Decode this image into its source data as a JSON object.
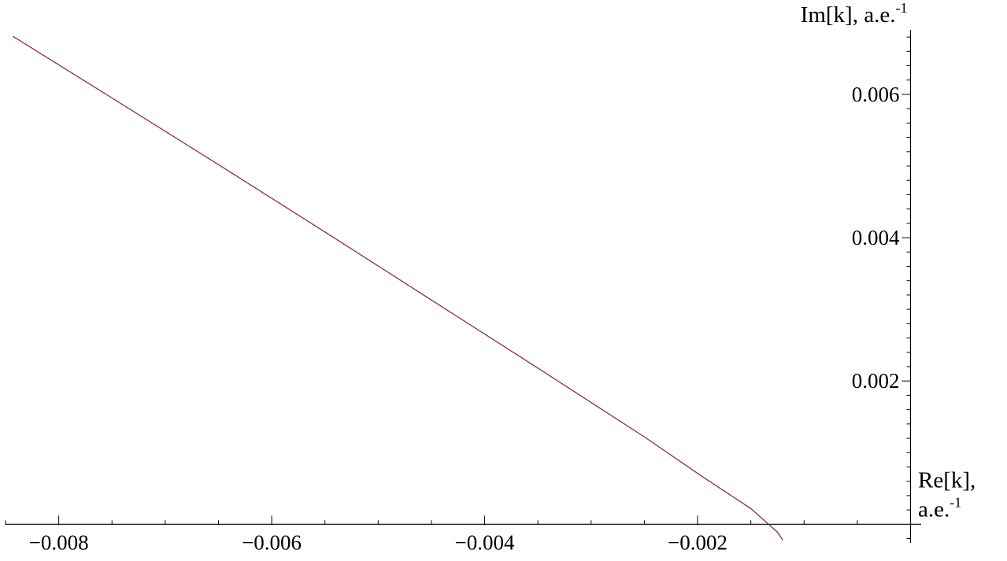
{
  "chart_data": {
    "type": "line",
    "title": "",
    "xlabel": {
      "main": "Re[k],",
      "unit": "a.e.",
      "unit_exponent": "-1"
    },
    "ylabel": {
      "main": "Im[k], a.e.",
      "unit_exponent": "-1"
    },
    "xlim": [
      -0.0085,
      0.0001
    ],
    "ylim": [
      -0.00026,
      0.0069
    ],
    "x_major_ticks": [
      -0.008,
      -0.006,
      -0.004,
      -0.002
    ],
    "x_tick_labels": [
      "−0.008",
      "−0.006",
      "−0.004",
      "−0.002"
    ],
    "y_major_ticks": [
      0.002,
      0.004,
      0.006
    ],
    "y_tick_labels": [
      "0.002",
      "0.004",
      "0.006"
    ],
    "grid": false,
    "legend": "none",
    "line_color": "#8b2a5a",
    "series": [
      {
        "x": [
          -0.00843,
          -0.0075,
          -0.0065,
          -0.0055,
          -0.0045,
          -0.0035,
          -0.0025,
          -0.00195,
          -0.0015,
          -0.00125,
          -0.0012
        ],
        "y": [
          0.00681,
          0.00595,
          0.00502,
          0.00408,
          0.00313,
          0.00218,
          0.00122,
          0.00066,
          0.00022,
          -0.00011,
          -0.00022
        ]
      }
    ]
  }
}
